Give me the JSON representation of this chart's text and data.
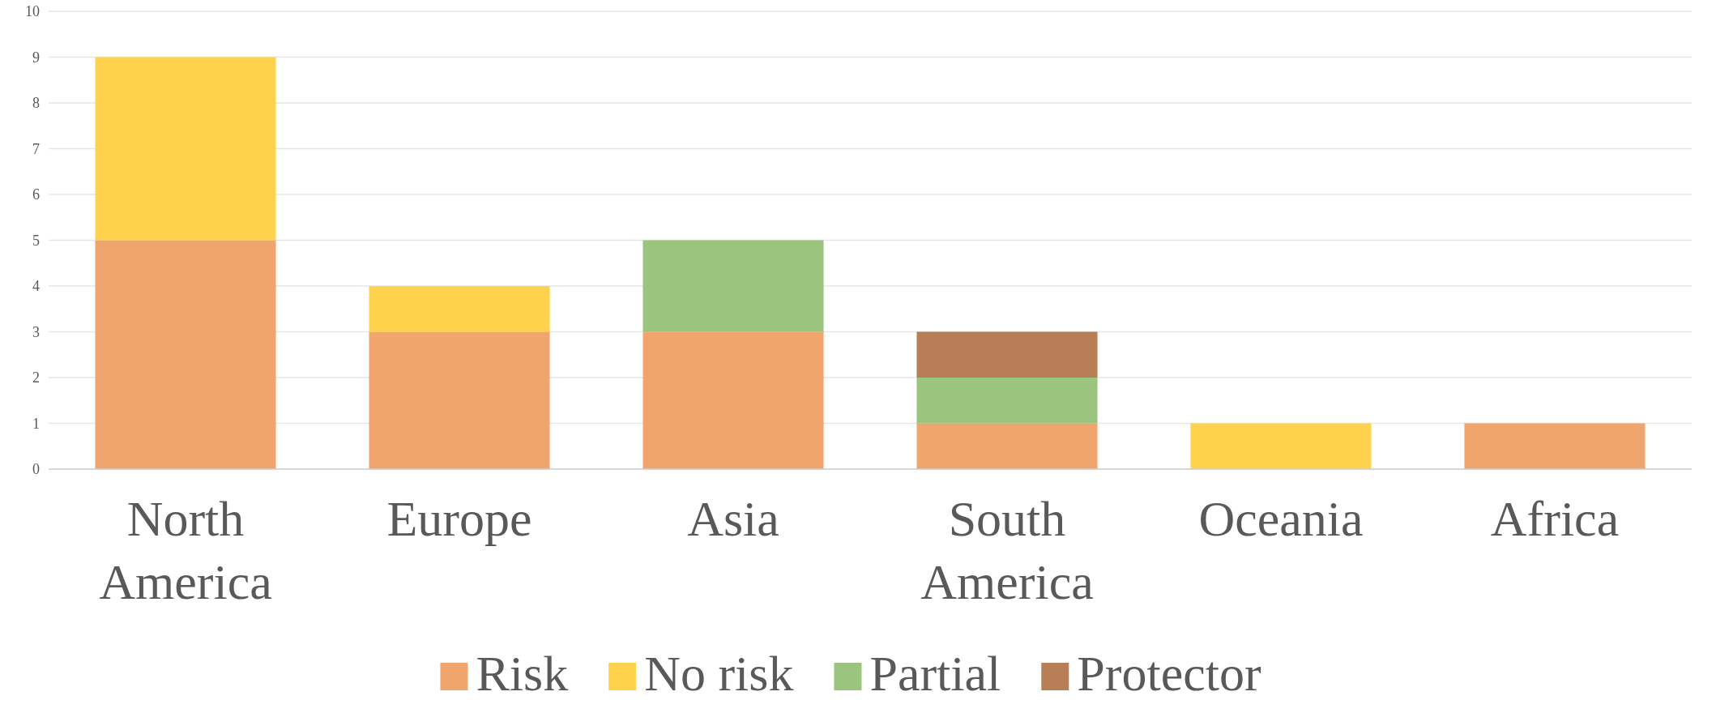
{
  "chart_data": {
    "type": "bar",
    "stacked": true,
    "categories": [
      "North America",
      "Europe",
      "Asia",
      "South America",
      "Oceania",
      "Africa"
    ],
    "series": [
      {
        "name": "Risk",
        "color": "#f0a46e",
        "values": [
          5,
          3,
          3,
          1,
          0,
          1
        ]
      },
      {
        "name": "No risk",
        "color": "#ffd24d",
        "values": [
          4,
          1,
          0,
          0,
          1,
          0
        ]
      },
      {
        "name": "Partial",
        "color": "#9bc47f",
        "values": [
          0,
          0,
          2,
          1,
          0,
          0
        ]
      },
      {
        "name": "Protector",
        "color": "#b87e55",
        "values": [
          0,
          0,
          0,
          1,
          0,
          0
        ]
      }
    ],
    "ylim": [
      0,
      10
    ],
    "yticks": [
      0,
      1,
      2,
      3,
      4,
      5,
      6,
      7,
      8,
      9,
      10
    ],
    "grid": "y",
    "legend": "bottom"
  }
}
